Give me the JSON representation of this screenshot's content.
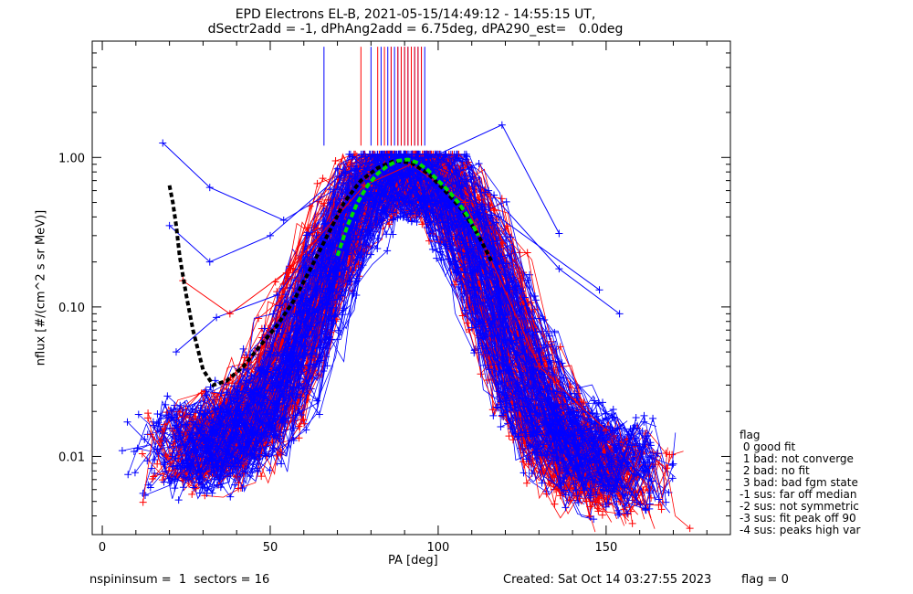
{
  "header": {
    "title_line1": "EPD Electrons EL-B, 2021-05-15/14:49:12 - 14:55:15 UT,",
    "title_line2": "dSectr2add = -1, dPhAng2add = 6.75deg, dPA290_est=   0.0deg"
  },
  "footer": {
    "left": "nspininsum =  1  sectors = 16",
    "created": "Created: Sat Oct 14 03:27:55 2023",
    "flag": "flag = 0"
  },
  "legend": {
    "title": "flag",
    "items": [
      " 0 good fit",
      " 1 bad: not converge",
      " 2 bad: no fit",
      " 3 bad: bad fgm state",
      "-1 sus: far off median",
      "-2 sus: not symmetric",
      "-3 sus: fit peak off 90",
      "-4 sus: peaks high var"
    ]
  },
  "colors": {
    "blue": "#0000ff",
    "red": "#ff0000",
    "green": "#00dd00",
    "black": "#000000"
  },
  "chart_data": {
    "type": "line",
    "title": "EPD Electrons EL-B, 2021-05-15/14:49:12 - 14:55:15 UT,",
    "xlabel": "PA [deg]",
    "ylabel": "nflux [#/(cm^2 s sr MeV)]",
    "xlim": [
      -3,
      187
    ],
    "ylim": [
      0.003,
      6.0
    ],
    "yscale": "log",
    "xticks": [
      0,
      50,
      100,
      150
    ],
    "yticks": [
      0.01,
      0.1,
      1.0
    ],
    "ytick_labels": [
      "0.01",
      "0.10",
      "1.00"
    ],
    "grid": false,
    "legend_position": "right",
    "fit_green": {
      "x": [
        70,
        73,
        76,
        79,
        82,
        85,
        88,
        91,
        94,
        97,
        100,
        103,
        106,
        109,
        112
      ],
      "y": [
        0.22,
        0.35,
        0.5,
        0.65,
        0.78,
        0.88,
        0.95,
        0.97,
        0.92,
        0.82,
        0.7,
        0.6,
        0.5,
        0.4,
        0.3
      ]
    },
    "median_black": {
      "x": [
        20,
        21,
        22,
        23,
        25,
        27,
        30,
        33,
        37,
        42,
        47,
        52,
        57,
        62,
        67,
        72,
        77,
        82,
        87,
        92,
        97,
        102,
        107,
        112,
        116
      ],
      "y": [
        0.65,
        0.5,
        0.35,
        0.22,
        0.12,
        0.07,
        0.038,
        0.03,
        0.032,
        0.04,
        0.055,
        0.075,
        0.11,
        0.18,
        0.3,
        0.5,
        0.7,
        0.85,
        0.95,
        0.92,
        0.78,
        0.6,
        0.45,
        0.3,
        0.2
      ]
    },
    "peak_markers": {
      "blue_x": [
        66,
        80,
        83,
        85,
        86,
        87,
        88,
        89,
        90,
        91,
        92,
        93,
        94,
        95,
        96
      ],
      "red_x": [
        77,
        82,
        84,
        86,
        88,
        89,
        90,
        91,
        92,
        93,
        94,
        95
      ],
      "from_y": 5.5,
      "to_y": 1.2
    },
    "outlier_series": [
      {
        "color": "blue",
        "x": [
          18,
          32,
          54,
          76,
          98,
          119,
          136
        ],
        "y": [
          1.25,
          0.63,
          0.38,
          0.75,
          1.0,
          1.65,
          0.31
        ]
      },
      {
        "color": "blue",
        "x": [
          20,
          32,
          50,
          72,
          94,
          115,
          136,
          154
        ],
        "y": [
          0.35,
          0.2,
          0.3,
          0.8,
          1.0,
          0.6,
          0.18,
          0.09
        ]
      },
      {
        "color": "blue",
        "x": [
          22,
          34,
          52,
          74,
          92,
          118,
          148
        ],
        "y": [
          0.05,
          0.085,
          0.12,
          0.55,
          0.95,
          0.4,
          0.13
        ]
      },
      {
        "color": "red",
        "x": [
          24,
          38,
          56,
          78,
          92,
          108,
          130,
          150
        ],
        "y": [
          0.15,
          0.09,
          0.18,
          0.65,
          0.9,
          0.5,
          0.04,
          0.015
        ]
      }
    ],
    "bundle_blue": {
      "count": 180,
      "x": [
        20,
        25,
        30,
        35,
        40,
        45,
        50,
        55,
        60,
        65,
        70,
        75,
        80,
        85,
        90,
        95,
        100,
        105,
        110,
        115,
        120,
        125,
        130,
        135,
        140,
        145,
        150,
        155,
        158
      ],
      "y_center": [
        0.012,
        0.012,
        0.013,
        0.014,
        0.016,
        0.02,
        0.028,
        0.045,
        0.08,
        0.15,
        0.28,
        0.48,
        0.7,
        0.85,
        0.93,
        0.9,
        0.78,
        0.55,
        0.33,
        0.18,
        0.09,
        0.045,
        0.025,
        0.017,
        0.013,
        0.011,
        0.01,
        0.009,
        0.009
      ]
    },
    "bundle_red": {
      "count": 90,
      "x": [
        22,
        27,
        32,
        37,
        42,
        47,
        52,
        57,
        62,
        67,
        72,
        77,
        82,
        87,
        92,
        97,
        102,
        107,
        112,
        117,
        122,
        127,
        132,
        137,
        142,
        147,
        152,
        157,
        159
      ],
      "y_center": [
        0.011,
        0.012,
        0.013,
        0.015,
        0.018,
        0.024,
        0.035,
        0.06,
        0.11,
        0.22,
        0.4,
        0.62,
        0.8,
        0.9,
        0.9,
        0.82,
        0.68,
        0.48,
        0.28,
        0.14,
        0.065,
        0.032,
        0.018,
        0.012,
        0.01,
        0.009,
        0.008,
        0.0075,
        0.007
      ]
    }
  }
}
